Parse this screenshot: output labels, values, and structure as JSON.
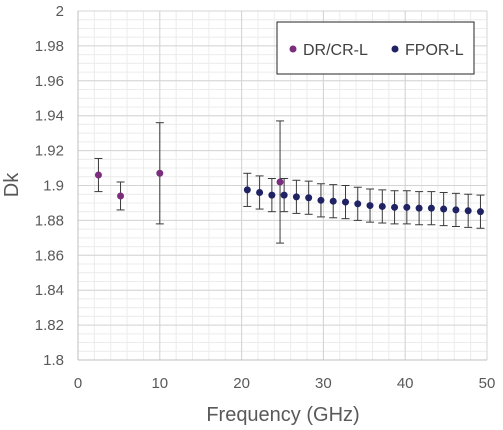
{
  "chart_data": {
    "type": "scatter",
    "title": "",
    "xlabel": "Frequency (GHz)",
    "ylabel": "Dk",
    "xlim": [
      0,
      50
    ],
    "ylim": [
      1.8,
      2.0
    ],
    "x_ticks": [
      0,
      10,
      20,
      30,
      40,
      50
    ],
    "y_ticks": [
      1.8,
      1.82,
      1.84,
      1.86,
      1.88,
      1.9,
      1.92,
      1.94,
      1.96,
      1.98,
      2.0
    ],
    "x_tick_labels": [
      "0",
      "10",
      "20",
      "30",
      "40",
      "50"
    ],
    "y_tick_labels": [
      "1.8",
      "1.82",
      "1.84",
      "1.86",
      "1.88",
      "1.9",
      "1.92",
      "1.94",
      "1.96",
      "1.98",
      "2"
    ],
    "grid": {
      "major": true,
      "minor": true
    },
    "legend": {
      "position": "top-right"
    },
    "series": [
      {
        "name": "DR/CR-L",
        "color": "#7b2d7e",
        "points": [
          {
            "x": 2.5,
            "y": 1.906,
            "err": 0.0095
          },
          {
            "x": 5.2,
            "y": 1.894,
            "err": 0.008
          },
          {
            "x": 10.0,
            "y": 1.907,
            "err": 0.029
          },
          {
            "x": 24.7,
            "y": 1.902,
            "err": 0.035
          }
        ]
      },
      {
        "name": "FPOR-L",
        "color": "#1f2263",
        "points": [
          {
            "x": 20.7,
            "y": 1.8975,
            "err": 0.0095
          },
          {
            "x": 22.2,
            "y": 1.896,
            "err": 0.0095
          },
          {
            "x": 23.7,
            "y": 1.8945,
            "err": 0.0095
          },
          {
            "x": 25.2,
            "y": 1.8945,
            "err": 0.0095
          },
          {
            "x": 26.7,
            "y": 1.8935,
            "err": 0.0095
          },
          {
            "x": 28.2,
            "y": 1.893,
            "err": 0.0095
          },
          {
            "x": 29.7,
            "y": 1.8915,
            "err": 0.0095
          },
          {
            "x": 31.2,
            "y": 1.891,
            "err": 0.0095
          },
          {
            "x": 32.7,
            "y": 1.8905,
            "err": 0.0095
          },
          {
            "x": 34.2,
            "y": 1.8895,
            "err": 0.0095
          },
          {
            "x": 35.7,
            "y": 1.8885,
            "err": 0.0095
          },
          {
            "x": 37.2,
            "y": 1.888,
            "err": 0.0095
          },
          {
            "x": 38.7,
            "y": 1.8875,
            "err": 0.0095
          },
          {
            "x": 40.2,
            "y": 1.8875,
            "err": 0.0095
          },
          {
            "x": 41.7,
            "y": 1.887,
            "err": 0.0095
          },
          {
            "x": 43.2,
            "y": 1.887,
            "err": 0.0095
          },
          {
            "x": 44.7,
            "y": 1.8865,
            "err": 0.0095
          },
          {
            "x": 46.2,
            "y": 1.886,
            "err": 0.0095
          },
          {
            "x": 47.7,
            "y": 1.8855,
            "err": 0.0095
          },
          {
            "x": 49.2,
            "y": 1.885,
            "err": 0.0095
          }
        ]
      }
    ]
  }
}
